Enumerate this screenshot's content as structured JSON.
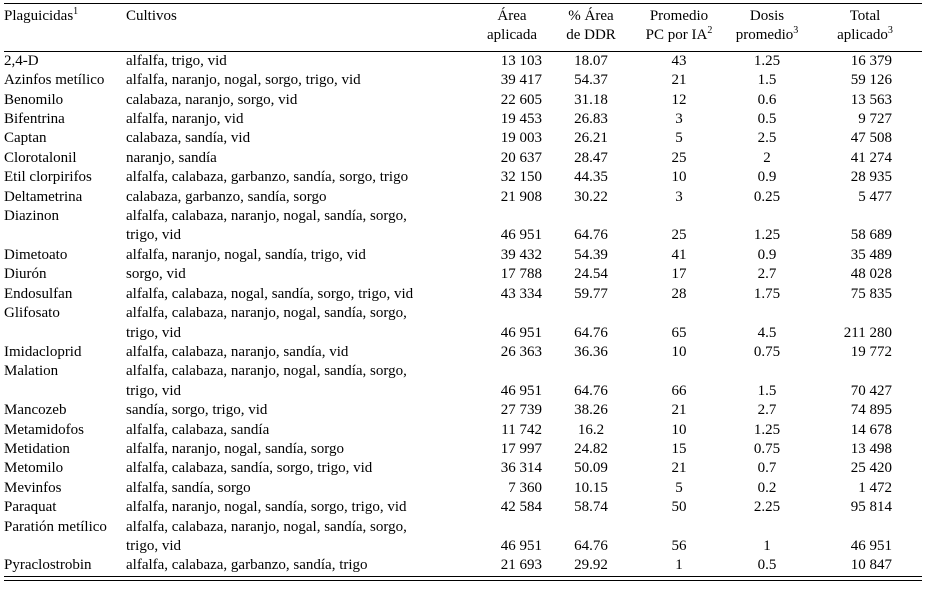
{
  "table": {
    "headers": {
      "pesticide": {
        "label": "Plaguicidas",
        "sup": "1"
      },
      "crops": {
        "label": "Cultivos"
      },
      "area": {
        "line1": "Área",
        "line2": "aplicada"
      },
      "pct": {
        "line1": "% Área",
        "line2": "de DDR"
      },
      "avg": {
        "line1": "Promedio",
        "line2": "PC por IA",
        "sup": "2"
      },
      "dose": {
        "line1": "Dosis",
        "line2": "promedio",
        "sup": "3"
      },
      "total": {
        "line1": "Total",
        "line2": "aplicado",
        "sup": "3"
      }
    },
    "rows": [
      {
        "pesticide": "2,4-D",
        "crops": "alfalfa, trigo, vid",
        "area": "13 103",
        "pct": "18.07",
        "avg": "43",
        "dose": "1.25",
        "total": "16 379"
      },
      {
        "pesticide": "Azinfos metílico",
        "crops": "alfalfa, naranjo, nogal, sorgo, trigo, vid",
        "area": "39 417",
        "pct": "54.37",
        "avg": "21",
        "dose": "1.5",
        "total": "59 126"
      },
      {
        "pesticide": "Benomilo",
        "crops": "calabaza, naranjo, sorgo, vid",
        "area": "22 605",
        "pct": "31.18",
        "avg": "12",
        "dose": "0.6",
        "total": "13 563"
      },
      {
        "pesticide": "Bifentrina",
        "crops": "alfalfa, naranjo, vid",
        "area": "19 453",
        "pct": "26.83",
        "avg": "3",
        "dose": "0.5",
        "total": "9 727"
      },
      {
        "pesticide": "Captan",
        "crops": "calabaza, sandía, vid",
        "area": "19 003",
        "pct": "26.21",
        "avg": "5",
        "dose": "2.5",
        "total": "47 508"
      },
      {
        "pesticide": "Clorotalonil",
        "crops": "naranjo, sandía",
        "area": "20 637",
        "pct": "28.47",
        "avg": "25",
        "dose": "2",
        "total": "41 274"
      },
      {
        "pesticide": "Etil clorpirifos",
        "crops": "alfalfa, calabaza, garbanzo, sandía, sorgo, trigo",
        "area": "32 150",
        "pct": "44.35",
        "avg": "10",
        "dose": "0.9",
        "total": "28 935"
      },
      {
        "pesticide": "Deltametrina",
        "crops": "calabaza, garbanzo, sandía, sorgo",
        "area": "21 908",
        "pct": "30.22",
        "avg": "3",
        "dose": "0.25",
        "total": "5 477"
      },
      {
        "pesticide": "Diazinon",
        "crops": "alfalfa, calabaza, naranjo, nogal, sandía, sorgo,\ntrigo, vid",
        "area": "46 951",
        "pct": "64.76",
        "avg": "25",
        "dose": "1.25",
        "total": "58 689"
      },
      {
        "pesticide": "Dimetoato",
        "crops": "alfalfa, naranjo, nogal, sandía, trigo, vid",
        "area": "39 432",
        "pct": "54.39",
        "avg": "41",
        "dose": "0.9",
        "total": "35 489"
      },
      {
        "pesticide": "Diurón",
        "crops": "sorgo, vid",
        "area": "17 788",
        "pct": "24.54",
        "avg": "17",
        "dose": "2.7",
        "total": "48 028"
      },
      {
        "pesticide": "Endosulfan",
        "crops": "alfalfa, calabaza, nogal, sandía, sorgo, trigo, vid",
        "area": "43 334",
        "pct": "59.77",
        "avg": "28",
        "dose": "1.75",
        "total": "75 835"
      },
      {
        "pesticide": "Glifosato",
        "crops": "alfalfa, calabaza, naranjo, nogal, sandía, sorgo,\ntrigo, vid",
        "area": "46 951",
        "pct": "64.76",
        "avg": "65",
        "dose": "4.5",
        "total": "211 280"
      },
      {
        "pesticide": "Imidacloprid",
        "crops": "alfalfa, calabaza, naranjo, sandía, vid",
        "area": "26 363",
        "pct": "36.36",
        "avg": "10",
        "dose": "0.75",
        "total": "19 772"
      },
      {
        "pesticide": "Malation",
        "crops": "alfalfa, calabaza, naranjo, nogal, sandía, sorgo,\ntrigo, vid",
        "area": "46 951",
        "pct": "64.76",
        "avg": "66",
        "dose": "1.5",
        "total": "70 427"
      },
      {
        "pesticide": "Mancozeb",
        "crops": "sandía, sorgo, trigo, vid",
        "area": "27 739",
        "pct": "38.26",
        "avg": "21",
        "dose": "2.7",
        "total": "74 895"
      },
      {
        "pesticide": "Metamidofos",
        "crops": "alfalfa, calabaza, sandía",
        "area": "11 742",
        "pct": "16.2",
        "avg": "10",
        "dose": "1.25",
        "total": "14 678"
      },
      {
        "pesticide": "Metidation",
        "crops": "alfalfa, naranjo, nogal, sandía, sorgo",
        "area": "17 997",
        "pct": "24.82",
        "avg": "15",
        "dose": "0.75",
        "total": "13 498"
      },
      {
        "pesticide": "Metomilo",
        "crops": "alfalfa, calabaza, sandía, sorgo, trigo, vid",
        "area": "36 314",
        "pct": "50.09",
        "avg": "21",
        "dose": "0.7",
        "total": "25 420"
      },
      {
        "pesticide": "Mevinfos",
        "crops": "alfalfa, sandía, sorgo",
        "area": "7 360",
        "pct": "10.15",
        "avg": "5",
        "dose": "0.2",
        "total": "1 472"
      },
      {
        "pesticide": "Paraquat",
        "crops": "alfalfa, naranjo, nogal, sandía, sorgo, trigo, vid",
        "area": "42 584",
        "pct": "58.74",
        "avg": "50",
        "dose": "2.25",
        "total": "95 814"
      },
      {
        "pesticide": "Paratión metílico",
        "crops": "alfalfa, calabaza, naranjo, nogal, sandía, sorgo,\ntrigo, vid",
        "area": "46 951",
        "pct": "64.76",
        "avg": "56",
        "dose": "1",
        "total": "46 951"
      },
      {
        "pesticide": "Pyraclostrobin",
        "crops": "alfalfa, calabaza, garbanzo, sandía, trigo",
        "area": "21 693",
        "pct": "29.92",
        "avg": "1",
        "dose": "0.5",
        "total": "10 847"
      }
    ]
  }
}
